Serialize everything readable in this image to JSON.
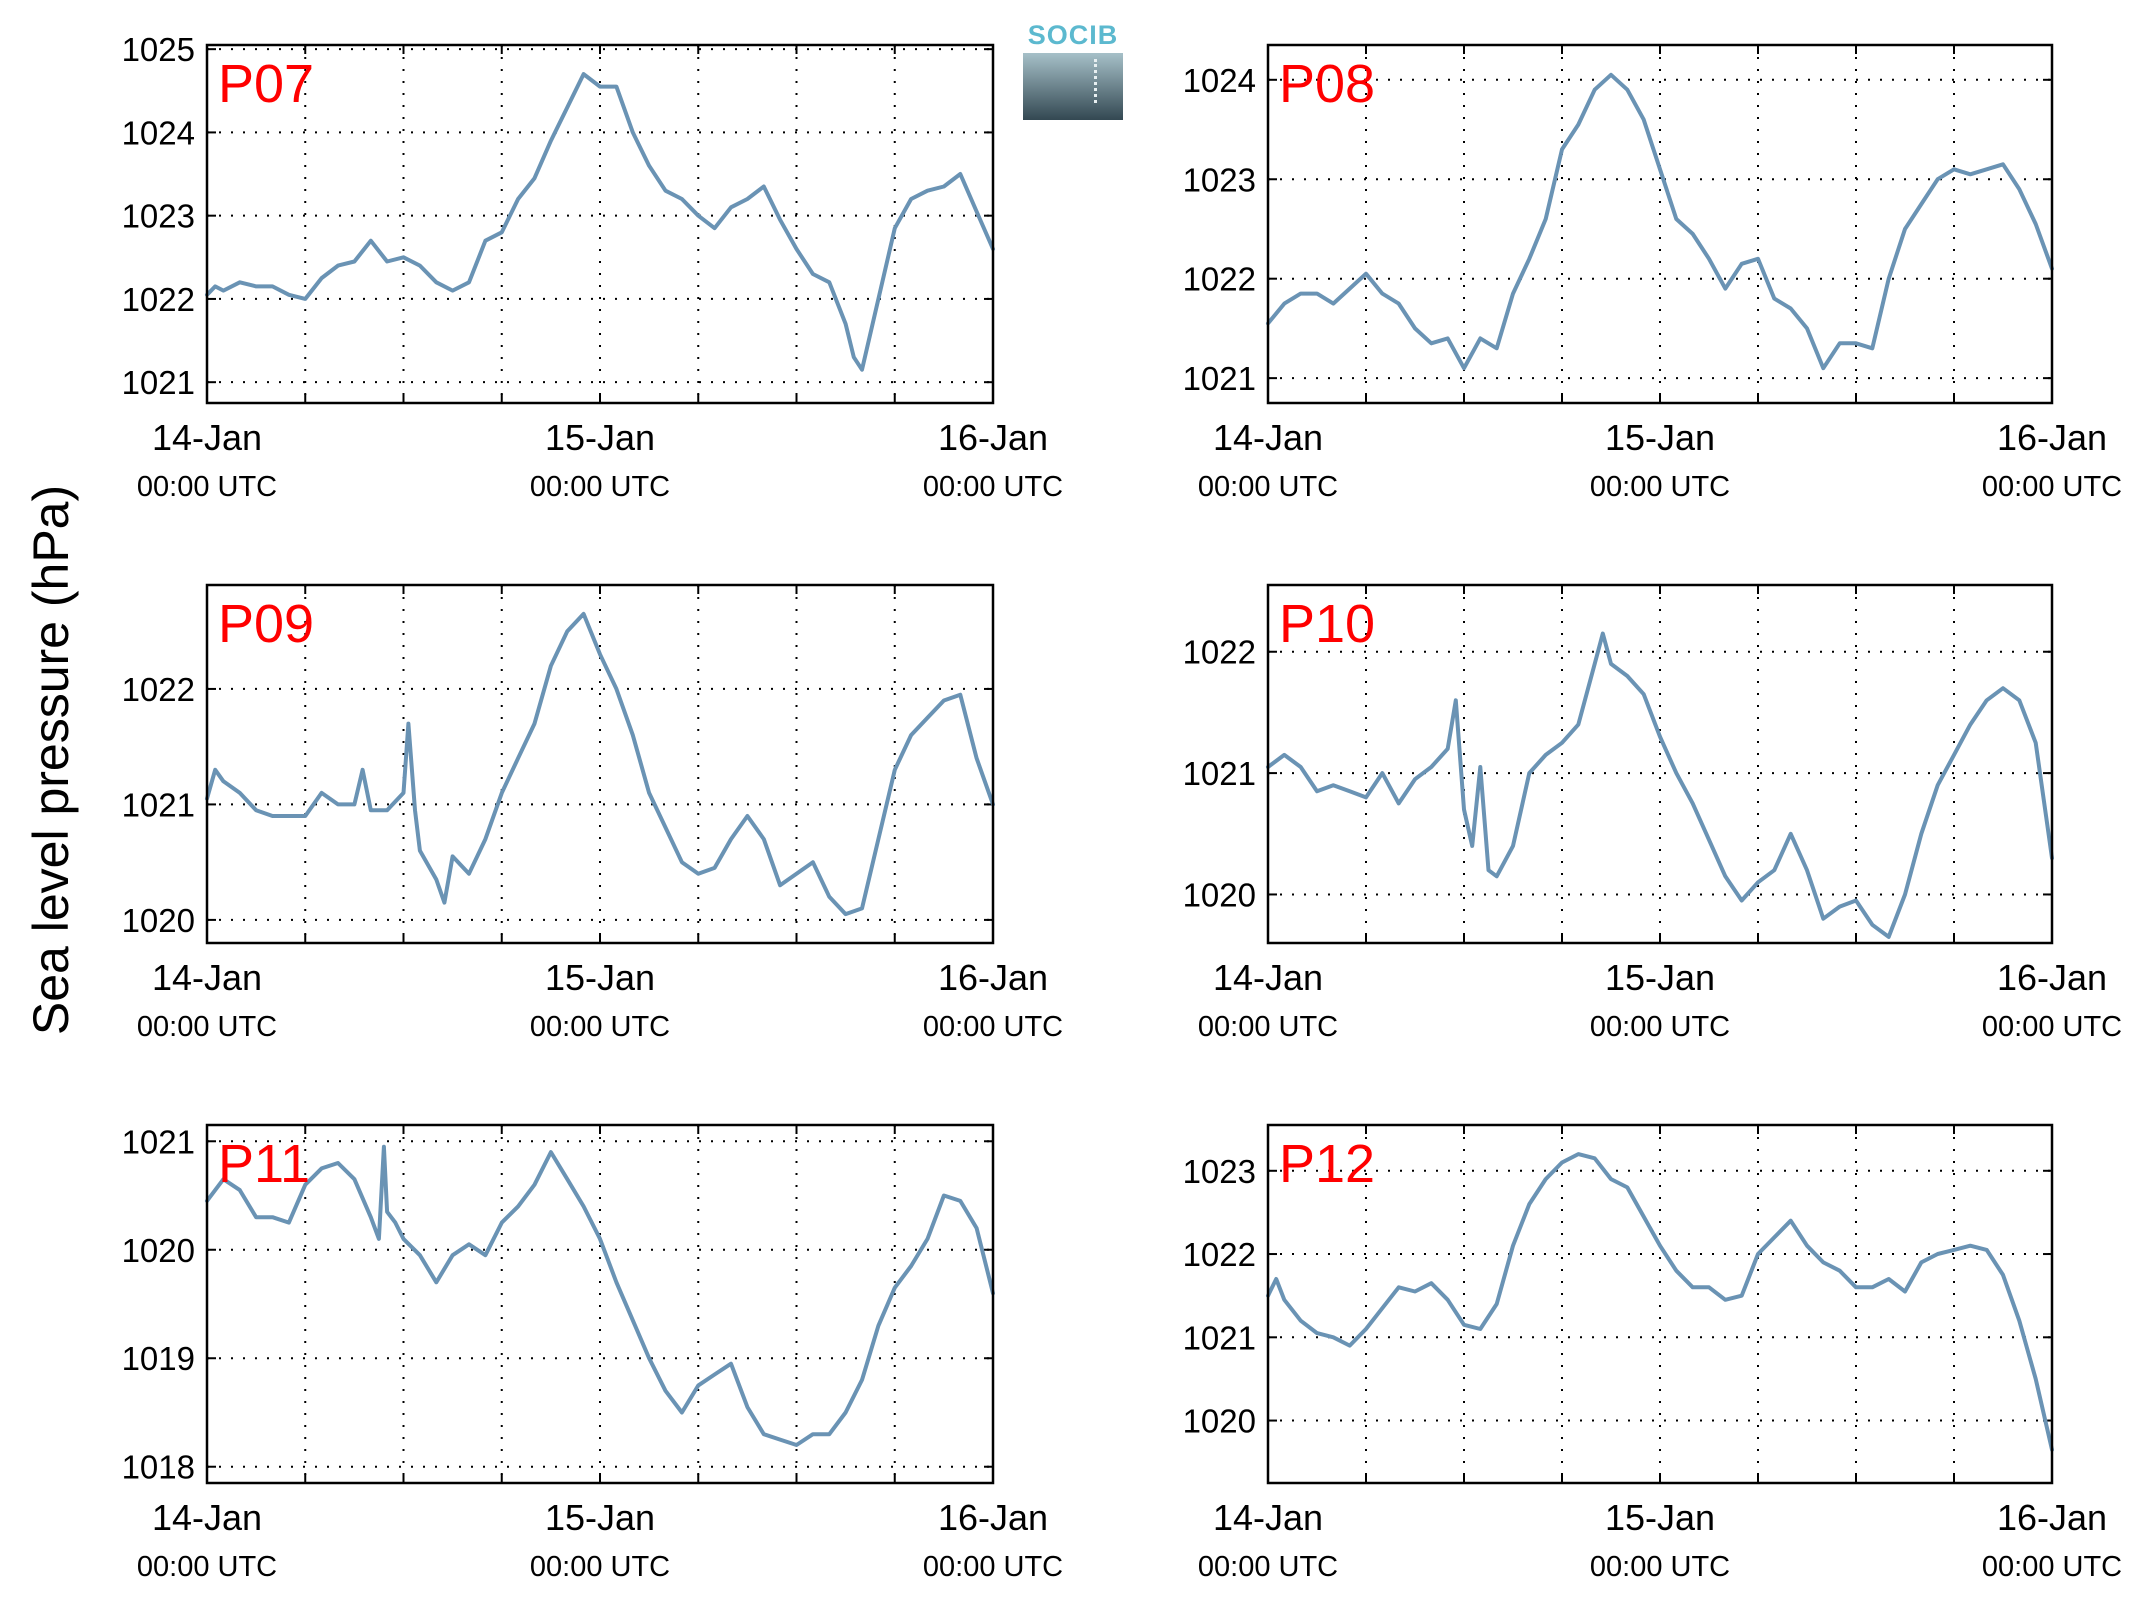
{
  "figure": {
    "ylabel": "Sea level pressure (hPa)",
    "logo_text": "SOCIB",
    "colors": {
      "line": "#6a93b4",
      "station_label": "#ff0000",
      "axis": "#000000",
      "grid": "#000000"
    }
  },
  "chart_data": [
    {
      "type": "line",
      "title": "P07",
      "xlabel": "",
      "ylabel": "Sea level pressure (hPa)",
      "x_unit": "hours since 14-Jan 00:00 UTC",
      "xlim": [
        0,
        48
      ],
      "ylim": [
        1020.75,
        1025.05
      ],
      "yticks": [
        1021,
        1022,
        1023,
        1024,
        1025
      ],
      "xtick_labels": [
        {
          "date": "14-Jan",
          "time": "00:00 UTC"
        },
        {
          "date": "15-Jan",
          "time": "00:00 UTC"
        },
        {
          "date": "16-Jan",
          "time": "00:00 UTC"
        }
      ],
      "grid": true,
      "series": [
        {
          "x": [
            0,
            0.5,
            1,
            2,
            3,
            4,
            5,
            6,
            7,
            8,
            9,
            10,
            11,
            12,
            13,
            14,
            15,
            16,
            17,
            18,
            19,
            20,
            21,
            22,
            23,
            24,
            25,
            26,
            27,
            28,
            29,
            30,
            31,
            32,
            33,
            34,
            35,
            36,
            37,
            38,
            39,
            39.5,
            40,
            41,
            42,
            43,
            44,
            45,
            46,
            47,
            48
          ],
          "y": [
            1022.05,
            1022.15,
            1022.1,
            1022.2,
            1022.15,
            1022.15,
            1022.05,
            1022.0,
            1022.25,
            1022.4,
            1022.45,
            1022.7,
            1022.45,
            1022.5,
            1022.4,
            1022.2,
            1022.1,
            1022.2,
            1022.7,
            1022.8,
            1023.2,
            1023.45,
            1023.9,
            1024.3,
            1024.7,
            1024.55,
            1024.55,
            1024.0,
            1023.6,
            1023.3,
            1023.2,
            1023.0,
            1022.85,
            1023.1,
            1023.2,
            1023.35,
            1022.95,
            1022.6,
            1022.3,
            1022.2,
            1021.7,
            1021.3,
            1021.15,
            1022.0,
            1022.85,
            1023.2,
            1023.3,
            1023.35,
            1023.5,
            1023.05,
            1022.6
          ]
        }
      ]
    },
    {
      "type": "line",
      "title": "P08",
      "xlabel": "",
      "ylabel": "Sea level pressure (hPa)",
      "x_unit": "hours since 14-Jan 00:00 UTC",
      "xlim": [
        0,
        48
      ],
      "ylim": [
        1020.75,
        1024.35
      ],
      "yticks": [
        1021,
        1022,
        1023,
        1024
      ],
      "xtick_labels": [
        {
          "date": "14-Jan",
          "time": "00:00 UTC"
        },
        {
          "date": "15-Jan",
          "time": "00:00 UTC"
        },
        {
          "date": "16-Jan",
          "time": "00:00 UTC"
        }
      ],
      "grid": true,
      "series": [
        {
          "x": [
            0,
            1,
            2,
            3,
            4,
            5,
            6,
            7,
            8,
            9,
            10,
            11,
            12,
            13,
            14,
            15,
            16,
            17,
            18,
            19,
            20,
            21,
            22,
            23,
            24,
            25,
            26,
            27,
            28,
            29,
            30,
            31,
            32,
            33,
            34,
            35,
            36,
            37,
            38,
            39,
            40,
            41,
            42,
            43,
            44,
            45,
            46,
            47,
            48
          ],
          "y": [
            1021.55,
            1021.75,
            1021.85,
            1021.85,
            1021.75,
            1021.9,
            1022.05,
            1021.85,
            1021.75,
            1021.5,
            1021.35,
            1021.4,
            1021.1,
            1021.4,
            1021.3,
            1021.85,
            1022.2,
            1022.6,
            1023.3,
            1023.55,
            1023.9,
            1024.05,
            1023.9,
            1023.6,
            1023.1,
            1022.6,
            1022.45,
            1022.2,
            1021.9,
            1022.15,
            1022.2,
            1021.8,
            1021.7,
            1021.5,
            1021.1,
            1021.35,
            1021.35,
            1021.3,
            1022.0,
            1022.5,
            1022.75,
            1023.0,
            1023.1,
            1023.05,
            1023.1,
            1023.15,
            1022.9,
            1022.55,
            1022.1
          ]
        }
      ]
    },
    {
      "type": "line",
      "title": "P09",
      "xlabel": "",
      "ylabel": "Sea level pressure (hPa)",
      "x_unit": "hours since 14-Jan 00:00 UTC",
      "xlim": [
        0,
        48
      ],
      "ylim": [
        1019.8,
        1022.9
      ],
      "yticks": [
        1020,
        1021,
        1022
      ],
      "xtick_labels": [
        {
          "date": "14-Jan",
          "time": "00:00 UTC"
        },
        {
          "date": "15-Jan",
          "time": "00:00 UTC"
        },
        {
          "date": "16-Jan",
          "time": "00:00 UTC"
        }
      ],
      "grid": true,
      "series": [
        {
          "x": [
            0,
            0.5,
            1,
            2,
            3,
            4,
            5,
            6,
            7,
            8,
            9,
            9.5,
            10,
            11,
            12,
            12.3,
            12.7,
            13,
            14,
            14.5,
            15,
            16,
            17,
            18,
            19,
            20,
            21,
            22,
            23,
            24,
            25,
            26,
            27,
            28,
            29,
            30,
            31,
            32,
            33,
            34,
            35,
            36,
            37,
            38,
            39,
            40,
            41,
            42,
            43,
            44,
            45,
            46,
            47,
            48
          ],
          "y": [
            1021.05,
            1021.3,
            1021.2,
            1021.1,
            1020.95,
            1020.9,
            1020.9,
            1020.9,
            1021.1,
            1021.0,
            1021.0,
            1021.3,
            1020.95,
            1020.95,
            1021.1,
            1021.7,
            1020.95,
            1020.6,
            1020.35,
            1020.15,
            1020.55,
            1020.4,
            1020.7,
            1021.1,
            1021.4,
            1021.7,
            1022.2,
            1022.5,
            1022.65,
            1022.3,
            1022.0,
            1021.6,
            1021.1,
            1020.8,
            1020.5,
            1020.4,
            1020.45,
            1020.7,
            1020.9,
            1020.7,
            1020.3,
            1020.4,
            1020.5,
            1020.2,
            1020.05,
            1020.1,
            1020.7,
            1021.3,
            1021.6,
            1021.75,
            1021.9,
            1021.95,
            1021.4,
            1021.0
          ]
        }
      ]
    },
    {
      "type": "line",
      "title": "P10",
      "xlabel": "",
      "ylabel": "Sea level pressure (hPa)",
      "x_unit": "hours since 14-Jan 00:00 UTC",
      "xlim": [
        0,
        48
      ],
      "ylim": [
        1019.6,
        1022.55
      ],
      "yticks": [
        1020,
        1021,
        1022
      ],
      "xtick_labels": [
        {
          "date": "14-Jan",
          "time": "00:00 UTC"
        },
        {
          "date": "15-Jan",
          "time": "00:00 UTC"
        },
        {
          "date": "16-Jan",
          "time": "00:00 UTC"
        }
      ],
      "grid": true,
      "series": [
        {
          "x": [
            0,
            1,
            2,
            3,
            4,
            5,
            6,
            7,
            8,
            9,
            10,
            11,
            11.5,
            12,
            12.5,
            13,
            13.5,
            14,
            15,
            16,
            17,
            18,
            19,
            20,
            20.5,
            21,
            22,
            23,
            24,
            25,
            26,
            27,
            28,
            29,
            30,
            31,
            32,
            33,
            34,
            35,
            36,
            37,
            38,
            39,
            40,
            41,
            42,
            43,
            44,
            45,
            46,
            47,
            48
          ],
          "y": [
            1021.05,
            1021.15,
            1021.05,
            1020.85,
            1020.9,
            1020.85,
            1020.8,
            1021.0,
            1020.75,
            1020.95,
            1021.05,
            1021.2,
            1021.6,
            1020.7,
            1020.4,
            1021.05,
            1020.2,
            1020.15,
            1020.4,
            1021.0,
            1021.15,
            1021.25,
            1021.4,
            1021.9,
            1022.15,
            1021.9,
            1021.8,
            1021.65,
            1021.3,
            1021.0,
            1020.75,
            1020.45,
            1020.15,
            1019.95,
            1020.1,
            1020.2,
            1020.5,
            1020.2,
            1019.8,
            1019.9,
            1019.95,
            1019.75,
            1019.65,
            1020.0,
            1020.5,
            1020.9,
            1021.15,
            1021.4,
            1021.6,
            1021.7,
            1021.6,
            1021.25,
            1020.3
          ]
        }
      ]
    },
    {
      "type": "line",
      "title": "P11",
      "xlabel": "",
      "ylabel": "Sea level pressure (hPa)",
      "x_unit": "hours since 14-Jan 00:00 UTC",
      "xlim": [
        0,
        48
      ],
      "ylim": [
        1017.85,
        1021.15
      ],
      "yticks": [
        1018,
        1019,
        1020,
        1021
      ],
      "xtick_labels": [
        {
          "date": "14-Jan",
          "time": "00:00 UTC"
        },
        {
          "date": "15-Jan",
          "time": "00:00 UTC"
        },
        {
          "date": "16-Jan",
          "time": "00:00 UTC"
        }
      ],
      "grid": true,
      "series": [
        {
          "x": [
            0,
            1,
            2,
            3,
            4,
            5,
            6,
            7,
            8,
            9,
            10,
            10.5,
            10.8,
            11,
            11.5,
            12,
            13,
            14,
            15,
            16,
            17,
            18,
            19,
            20,
            21,
            22,
            23,
            24,
            25,
            26,
            27,
            28,
            29,
            30,
            31,
            32,
            33,
            34,
            35,
            36,
            37,
            38,
            39,
            40,
            41,
            42,
            43,
            44,
            45,
            46,
            47,
            48
          ],
          "y": [
            1020.45,
            1020.65,
            1020.55,
            1020.3,
            1020.3,
            1020.25,
            1020.6,
            1020.75,
            1020.8,
            1020.65,
            1020.3,
            1020.1,
            1020.95,
            1020.35,
            1020.25,
            1020.1,
            1019.95,
            1019.7,
            1019.95,
            1020.05,
            1019.95,
            1020.25,
            1020.4,
            1020.6,
            1020.9,
            1020.65,
            1020.4,
            1020.1,
            1019.7,
            1019.35,
            1019.0,
            1018.7,
            1018.5,
            1018.75,
            1018.85,
            1018.95,
            1018.55,
            1018.3,
            1018.25,
            1018.2,
            1018.3,
            1018.3,
            1018.5,
            1018.8,
            1019.3,
            1019.65,
            1019.85,
            1020.1,
            1020.5,
            1020.45,
            1020.2,
            1019.6
          ]
        }
      ]
    },
    {
      "type": "line",
      "title": "P12",
      "xlabel": "",
      "ylabel": "Sea level pressure (hPa)",
      "x_unit": "hours since 14-Jan 00:00 UTC",
      "xlim": [
        0,
        48
      ],
      "ylim": [
        1019.25,
        1023.55
      ],
      "yticks": [
        1020,
        1021,
        1022,
        1023
      ],
      "xtick_labels": [
        {
          "date": "14-Jan",
          "time": "00:00 UTC"
        },
        {
          "date": "15-Jan",
          "time": "00:00 UTC"
        },
        {
          "date": "16-Jan",
          "time": "00:00 UTC"
        }
      ],
      "grid": true,
      "series": [
        {
          "x": [
            0,
            0.5,
            1,
            2,
            3,
            4,
            5,
            6,
            7,
            8,
            9,
            10,
            11,
            12,
            13,
            14,
            15,
            16,
            17,
            18,
            19,
            20,
            21,
            22,
            23,
            24,
            25,
            26,
            27,
            28,
            29,
            30,
            31,
            32,
            33,
            34,
            35,
            36,
            37,
            38,
            39,
            40,
            41,
            42,
            43,
            44,
            45,
            46,
            47,
            48
          ],
          "y": [
            1021.5,
            1021.7,
            1021.45,
            1021.2,
            1021.05,
            1021.0,
            1020.9,
            1021.1,
            1021.35,
            1021.6,
            1021.55,
            1021.65,
            1021.45,
            1021.15,
            1021.1,
            1021.4,
            1022.1,
            1022.6,
            1022.9,
            1023.1,
            1023.2,
            1023.15,
            1022.9,
            1022.8,
            1022.45,
            1022.1,
            1021.8,
            1021.6,
            1021.6,
            1021.45,
            1021.5,
            1022.0,
            1022.2,
            1022.4,
            1022.1,
            1021.9,
            1021.8,
            1021.6,
            1021.6,
            1021.7,
            1021.55,
            1021.9,
            1022.0,
            1022.05,
            1022.1,
            1022.05,
            1021.75,
            1021.2,
            1020.5,
            1019.65
          ]
        }
      ]
    }
  ]
}
